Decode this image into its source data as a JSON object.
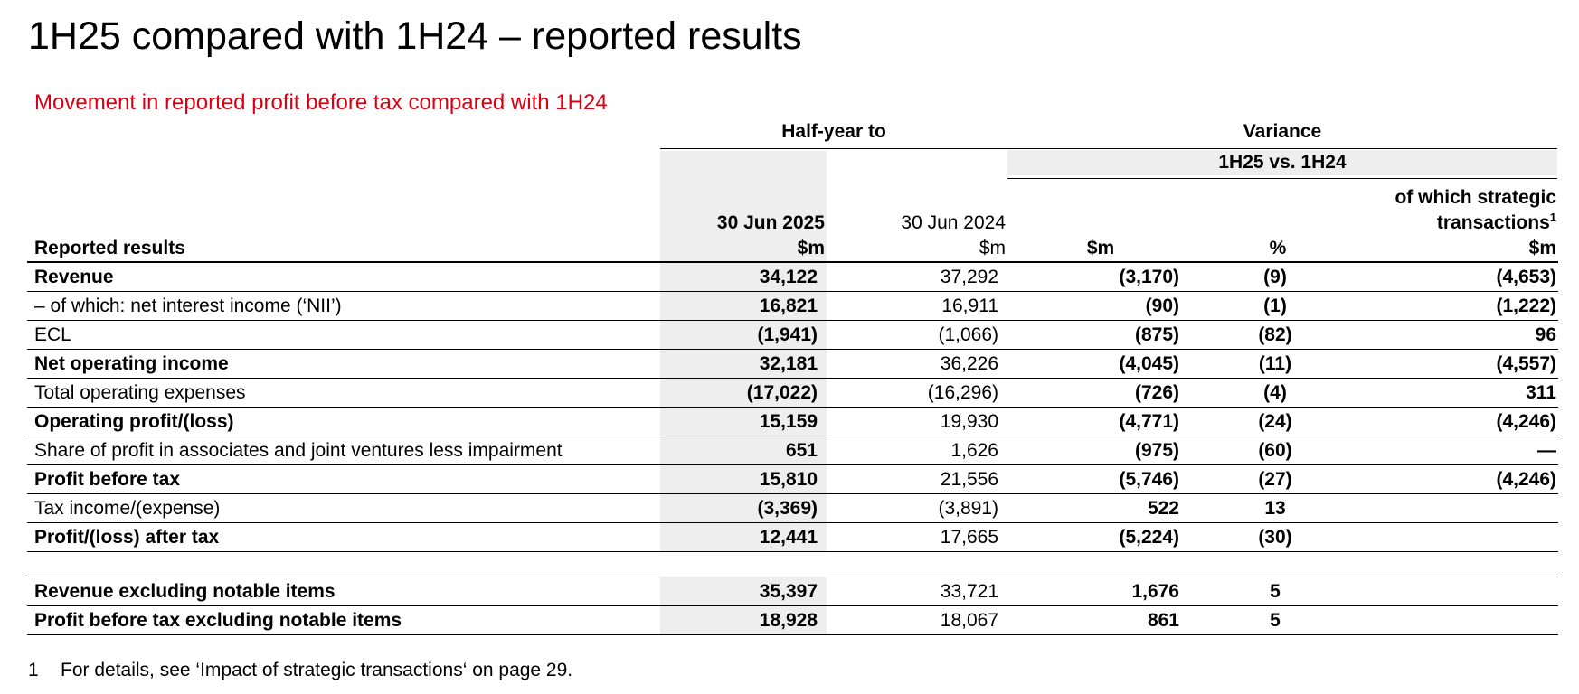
{
  "title": "1H25 compared with 1H24 – reported results",
  "subtitle": "Movement in reported profit before tax compared with 1H24",
  "headers": {
    "half_year_to": "Half-year to",
    "variance": "Variance",
    "variance_period": "1H25 vs. 1H24",
    "row_label": "Reported results",
    "col_2025_date": "30 Jun 2025",
    "col_2025_unit": "$m",
    "col_2024_date": "30 Jun 2024",
    "col_2024_unit": "$m",
    "var_unit": "$m",
    "var_pct_unit": "%",
    "strategic_line1": "of which strategic",
    "strategic_line2": "transactions",
    "strategic_footnote_ref": "1",
    "strategic_unit": "$m"
  },
  "rows": [
    {
      "label": "Revenue",
      "bold": true,
      "v2025": "34,122",
      "v2024": "37,292",
      "var": "(3,170)",
      "pct": "(9)",
      "strategic": "(4,653)"
    },
    {
      "label": "– of which: net interest income (‘NII’)",
      "bold": false,
      "v2025": "16,821",
      "v2024": "16,911",
      "var": "(90)",
      "pct": "(1)",
      "strategic": "(1,222)"
    },
    {
      "label": "ECL",
      "bold": false,
      "v2025": "(1,941)",
      "v2024": "(1,066)",
      "var": "(875)",
      "pct": "(82)",
      "strategic": "96"
    },
    {
      "label": "Net operating income",
      "bold": true,
      "v2025": "32,181",
      "v2024": "36,226",
      "var": "(4,045)",
      "pct": "(11)",
      "strategic": "(4,557)"
    },
    {
      "label": "Total operating expenses",
      "bold": false,
      "v2025": "(17,022)",
      "v2024": "(16,296)",
      "var": "(726)",
      "pct": "(4)",
      "strategic": "311"
    },
    {
      "label": "Operating profit/(loss)",
      "bold": true,
      "v2025": "15,159",
      "v2024": "19,930",
      "var": "(4,771)",
      "pct": "(24)",
      "strategic": "(4,246)"
    },
    {
      "label": "Share of profit in associates and joint ventures less impairment",
      "bold": false,
      "v2025": "651",
      "v2024": "1,626",
      "var": "(975)",
      "pct": "(60)",
      "strategic": "—"
    },
    {
      "label": "Profit before tax",
      "bold": true,
      "v2025": "15,810",
      "v2024": "21,556",
      "var": "(5,746)",
      "pct": "(27)",
      "strategic": "(4,246)"
    },
    {
      "label": "Tax income/(expense)",
      "bold": false,
      "v2025": "(3,369)",
      "v2024": "(3,891)",
      "var": "522",
      "pct": "13",
      "strategic": ""
    },
    {
      "label": "Profit/(loss) after tax",
      "bold": true,
      "v2025": "12,441",
      "v2024": "17,665",
      "var": "(5,224)",
      "pct": "(30)",
      "strategic": ""
    }
  ],
  "notable_rows": [
    {
      "label": "Revenue excluding notable items",
      "bold": true,
      "v2025": "35,397",
      "v2024": "33,721",
      "var": "1,676",
      "pct": "5",
      "strategic": ""
    },
    {
      "label": "Profit before tax excluding notable items",
      "bold": true,
      "v2025": "18,928",
      "v2024": "18,067",
      "var": "861",
      "pct": "5",
      "strategic": ""
    }
  ],
  "footnote": {
    "number": "1",
    "text": "For details, see ‘Impact of strategic transactions‘ on page 29."
  }
}
